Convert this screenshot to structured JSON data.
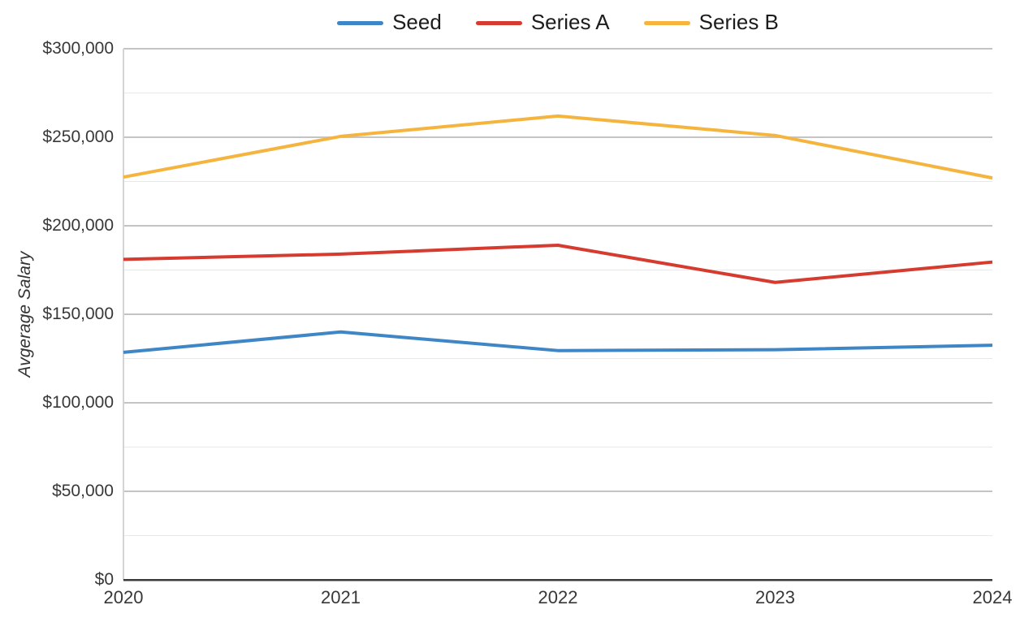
{
  "chart_data": {
    "type": "line",
    "title": "",
    "xlabel": "",
    "ylabel": "Avgerage Salary",
    "categories": [
      "2020",
      "2021",
      "2022",
      "2023",
      "2024"
    ],
    "series": [
      {
        "name": "Seed",
        "color": "#3e86c5",
        "values": [
          128500,
          140000,
          129500,
          130000,
          132500
        ]
      },
      {
        "name": "Series A",
        "color": "#d63b2f",
        "values": [
          181000,
          184000,
          189000,
          168000,
          179500
        ]
      },
      {
        "name": "Series B",
        "color": "#f5b43e",
        "values": [
          227500,
          250500,
          262000,
          251000,
          227000
        ]
      }
    ],
    "ylim": [
      0,
      300000
    ],
    "y_major_step": 50000,
    "y_minor_step": 25000,
    "y_tick_labels": [
      "$0",
      "$50,000",
      "$100,000",
      "$150,000",
      "$200,000",
      "$250,000",
      "$300,000"
    ],
    "grid": true,
    "legend_position": "top"
  },
  "style_colors": {
    "background": "#ffffff",
    "axis_text": "#383838",
    "legend_text": "#1c1c1c",
    "major_grid": "#c4c4c4",
    "minor_grid": "#e8e8e8",
    "left_axis": "#d4d4d4",
    "bottom_axis": "#3a3a3a"
  }
}
